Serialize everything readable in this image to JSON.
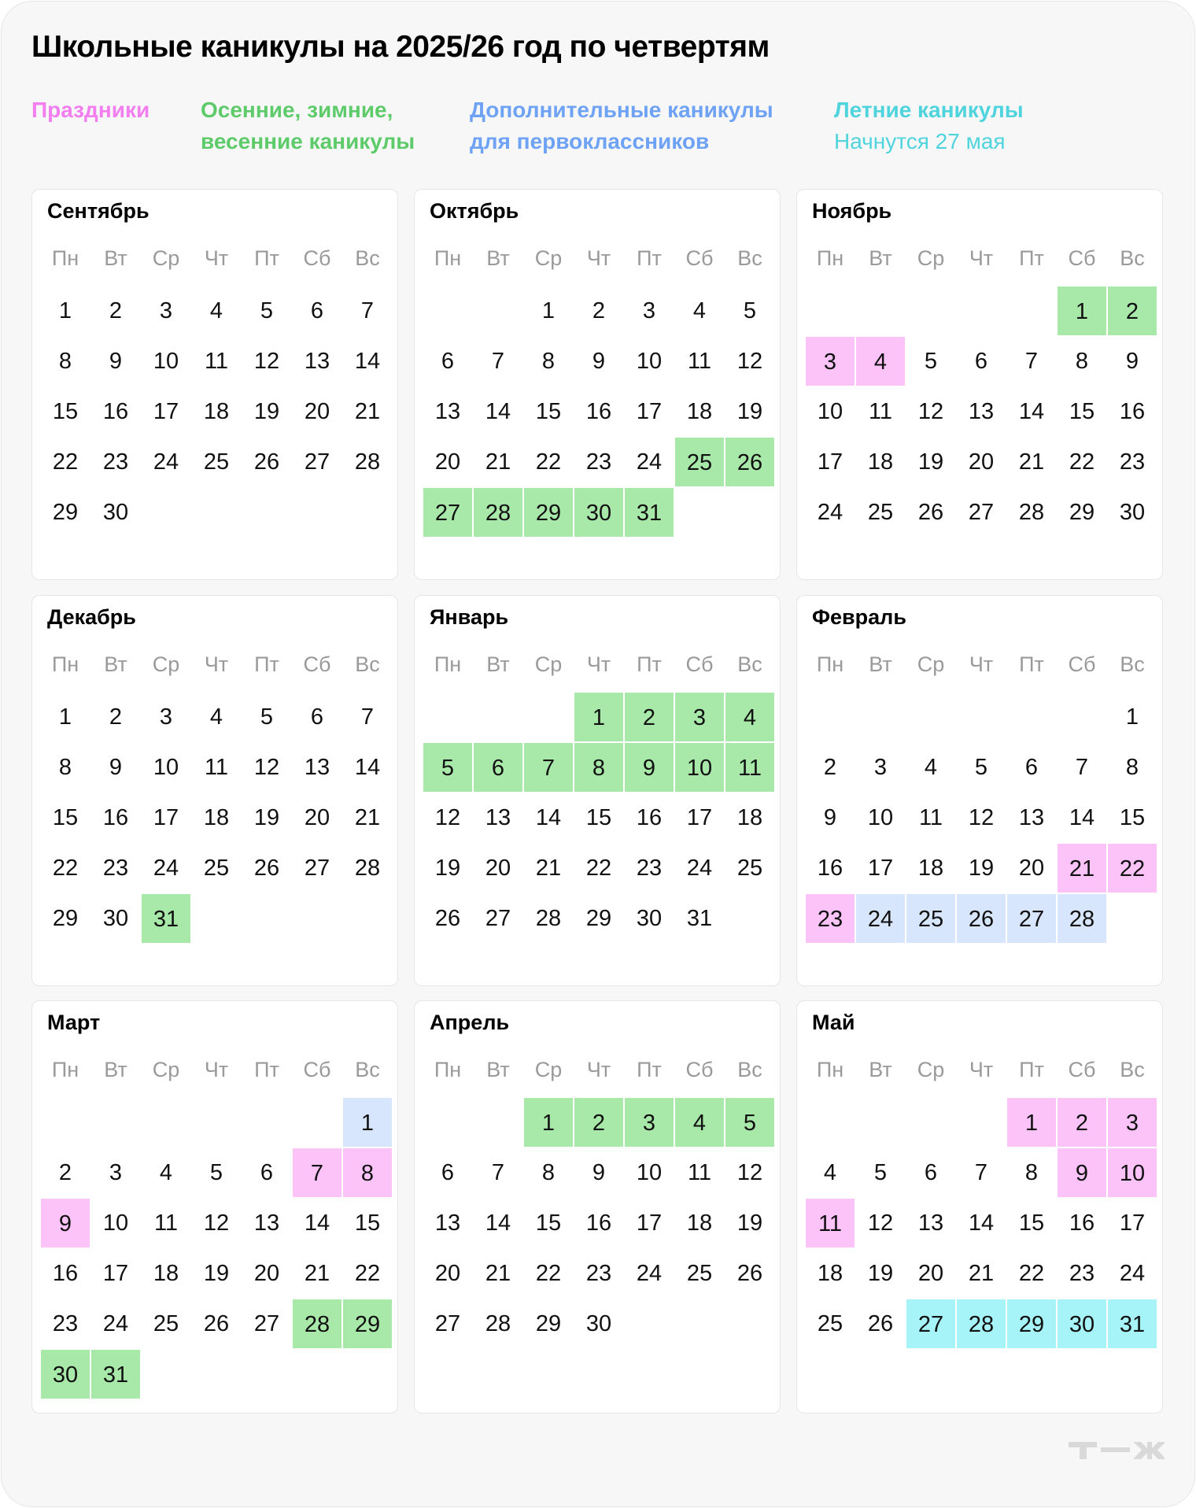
{
  "title": "Школьные каникулы на 2025/26 год по четвертям",
  "legend": [
    {
      "label": "Праздники",
      "sub": "",
      "color": "#F27EF0"
    },
    {
      "label": "Осенние, зимние,\nвесенние каникулы",
      "sub": "",
      "color": "#5ECB6B"
    },
    {
      "label": "Дополнительные каникулы\nдля первоклассников",
      "sub": "",
      "color": "#6EA2F5"
    },
    {
      "label": "Летние каникулы",
      "sub": "Начнутся 27 мая",
      "color": "#4FD4DD"
    }
  ],
  "fills": {
    "holiday": "#FCC3F9",
    "vacation": "#A8E8A9",
    "first_grade": "#D7E6FC",
    "summer": "#A6F3F8"
  },
  "weekdays": [
    "Пн",
    "Вт",
    "Ср",
    "Чт",
    "Пт",
    "Сб",
    "Вс"
  ],
  "months": [
    {
      "name": "Сентябрь",
      "first_weekday": 0,
      "days": 30,
      "holiday": [],
      "vacation": [],
      "first_grade": [],
      "summer": []
    },
    {
      "name": "Октябрь",
      "first_weekday": 2,
      "days": 31,
      "holiday": [],
      "vacation": [
        25,
        26,
        27,
        28,
        29,
        30,
        31
      ],
      "first_grade": [],
      "summer": []
    },
    {
      "name": "Ноябрь",
      "first_weekday": 5,
      "days": 30,
      "holiday": [
        3,
        4
      ],
      "vacation": [
        1,
        2
      ],
      "first_grade": [],
      "summer": []
    },
    {
      "name": "Декабрь",
      "first_weekday": 0,
      "days": 31,
      "holiday": [],
      "vacation": [
        31
      ],
      "first_grade": [],
      "summer": []
    },
    {
      "name": "Январь",
      "first_weekday": 3,
      "days": 31,
      "holiday": [],
      "vacation": [
        1,
        2,
        3,
        4,
        5,
        6,
        7,
        8,
        9,
        10,
        11
      ],
      "first_grade": [],
      "summer": []
    },
    {
      "name": "Февраль",
      "first_weekday": 6,
      "days": 28,
      "holiday": [
        21,
        22,
        23
      ],
      "vacation": [],
      "first_grade": [
        24,
        25,
        26,
        27,
        28
      ],
      "summer": []
    },
    {
      "name": "Март",
      "first_weekday": 6,
      "days": 31,
      "holiday": [
        7,
        8,
        9
      ],
      "vacation": [
        28,
        29,
        30,
        31
      ],
      "first_grade": [
        1
      ],
      "summer": []
    },
    {
      "name": "Апрель",
      "first_weekday": 2,
      "days": 30,
      "holiday": [],
      "vacation": [
        1,
        2,
        3,
        4,
        5
      ],
      "first_grade": [],
      "summer": []
    },
    {
      "name": "Май",
      "first_weekday": 4,
      "days": 31,
      "holiday": [
        1,
        2,
        3,
        9,
        10,
        11
      ],
      "vacation": [],
      "first_grade": [],
      "summer": [
        27,
        28,
        29,
        30,
        31
      ]
    }
  ],
  "logo": "т—ж"
}
